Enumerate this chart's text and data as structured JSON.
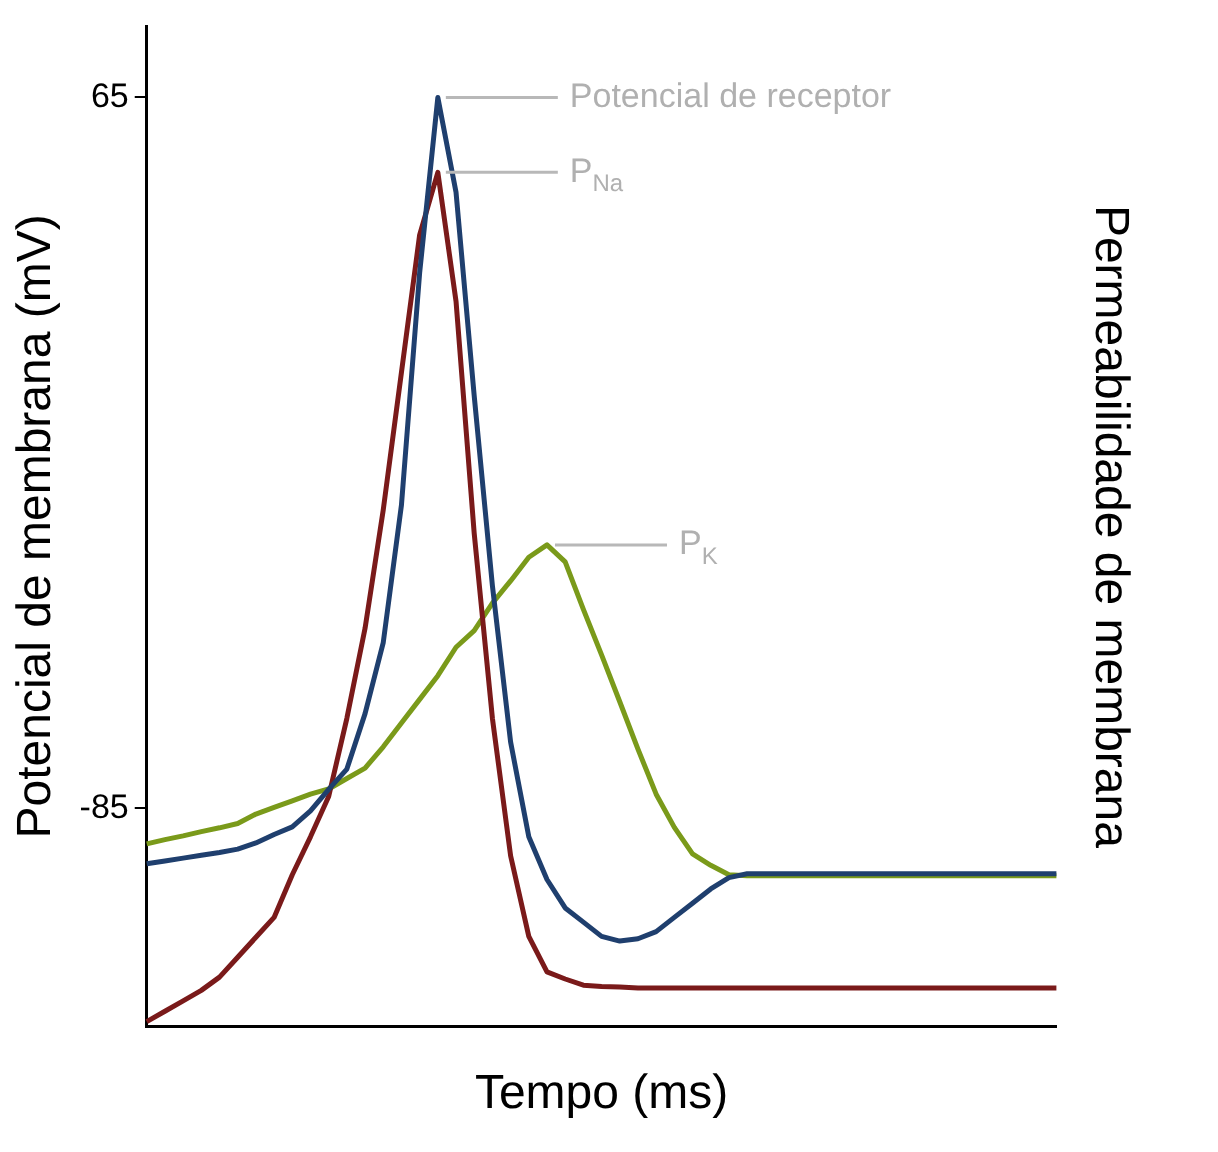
{
  "chart_data": {
    "type": "line",
    "xlabel": "Tempo (ms)",
    "ylabel": "Potencial de membrana (mV)",
    "y2label": "Permeabilidade de membrana",
    "annotations": [
      "Potencial de receptor",
      "P$_{Na}$",
      "P$_{K}$"
    ],
    "categories": [
      null,
      null,
      null,
      null,
      null,
      null,
      null,
      null,
      null,
      null,
      null,
      null,
      null,
      null,
      null,
      null,
      null,
      null,
      null,
      null,
      null,
      null,
      null,
      null,
      null,
      null,
      null,
      null,
      null,
      null,
      null,
      null,
      null,
      null,
      null,
      null,
      null,
      null,
      null,
      null,
      null,
      null,
      null,
      null,
      null,
      null,
      null,
      null,
      null,
      null,
      null
    ],
    "ylim": [
      -131,
      80
    ],
    "yticks": [
      65,
      -85
    ],
    "tick_labels": "y",
    "marker": "none",
    "line_style": "solid",
    "series": [
      {
        "color": "#1f3f6e",
        "values": [
          -96.7,
          -96.1,
          -95.5,
          -94.9,
          -94.3,
          -93.6,
          -92.3,
          -90.5,
          -88.9,
          -85.5,
          -81,
          -76.7,
          -65,
          -50,
          -21,
          28,
          65,
          45,
          2,
          -38,
          -71,
          -91,
          -100,
          -106,
          -109,
          -112,
          -113,
          -112.5,
          -111,
          -108,
          -105,
          -102,
          -99.6,
          -98.8,
          -98.8,
          -98.8,
          -98.8,
          -98.8,
          -98.8,
          -98.8,
          -98.8,
          -98.8,
          -98.8,
          -98.8,
          -98.8,
          -98.8,
          -98.8,
          -98.8,
          -98.8,
          -98.8,
          -98.8
        ]
      },
      {
        "color": "#7a1a1a",
        "values": [
          -130,
          -127.8,
          -125.6,
          -123.4,
          -120.6,
          -116.4,
          -112.2,
          -108,
          -99,
          -91,
          -82.5,
          -66,
          -47,
          -22,
          7,
          36,
          49.2,
          22,
          -27,
          -66,
          -95,
          -112,
          -119.5,
          -121,
          -122.3,
          -122.6,
          -122.7,
          -122.9,
          -122.9,
          -122.9,
          -122.9,
          -122.9,
          -122.9,
          -122.9,
          -122.9,
          -122.9,
          -122.9,
          -122.9,
          -122.9,
          -122.9,
          -122.9,
          -122.9,
          -122.9,
          -122.9,
          -122.9,
          -122.9,
          -122.9,
          -122.9,
          -122.9,
          -122.9,
          -122.9
        ]
      },
      {
        "color": "#7a9a1a",
        "values": [
          -92.5,
          -91.6,
          -90.8,
          -89.9,
          -89.1,
          -88.2,
          -86.2,
          -84.8,
          -83.4,
          -82,
          -80.9,
          -78.7,
          -76.5,
          -72,
          -67,
          -62,
          -57,
          -51,
          -47.5,
          -41.7,
          -37,
          -32,
          -29.4,
          -33,
          -43,
          -52.6,
          -62.5,
          -72.5,
          -82,
          -89,
          -94.6,
          -97,
          -99,
          -99.2,
          -99.2,
          -99.2,
          -99.2,
          -99.2,
          -99.2,
          -99.2,
          -99.2,
          -99.2,
          -99.2,
          -99.2,
          -99.2,
          -99.2,
          -99.2,
          -99.2,
          -99.2,
          -99.2,
          -99.2
        ]
      }
    ]
  }
}
